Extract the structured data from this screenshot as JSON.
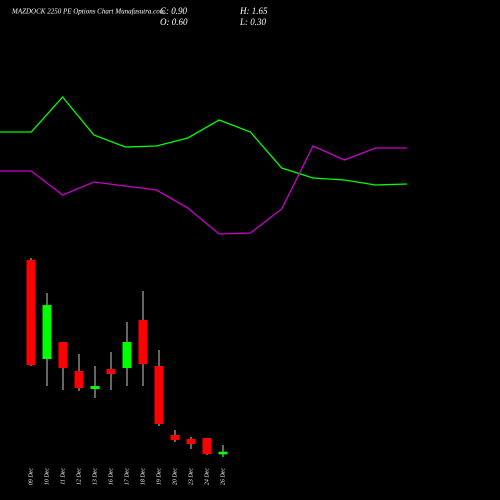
{
  "chart_data": [
    {
      "type": "line",
      "ylim": [
        0,
        250
      ],
      "series": [
        {
          "color": "#00ff00",
          "values": [
            118,
            118,
            153,
            115,
            103,
            104,
            112,
            130,
            118,
            82,
            72,
            70,
            65,
            66
          ]
        },
        {
          "color": "#cc00cc",
          "values": [
            79,
            79,
            55,
            68,
            64,
            60,
            42,
            16,
            17,
            41,
            104,
            90,
            102,
            102
          ]
        }
      ]
    },
    {
      "type": "candlestick",
      "title": "MAZDOCK 2250  PE Options  Chart Munafasutra.com",
      "ohlc_labels": [
        "C: 0.90",
        "O: 0.60",
        "H: 1.65",
        "L: 0.30"
      ],
      "categories": [
        "09 Dec",
        "10 Dec",
        "11 Dec",
        "12 Dec",
        "13 Dec",
        "16 Dec",
        "17 Dec",
        "18 Dec",
        "19 Dec",
        "20 Dec",
        "23 Dec",
        "24 Dec",
        "26 Dec"
      ],
      "open": [
        22.46,
        11.33,
        13.24,
        9.98,
        7.95,
        10.2,
        10.31,
        15.71,
        10.54,
        2.78,
        2.33,
        2.44,
        0.6
      ],
      "high": [
        22.69,
        18.75,
        13.24,
        11.89,
        10.54,
        12.11,
        15.49,
        18.98,
        12.34,
        3.34,
        2.55,
        2.44,
        1.65
      ],
      "low": [
        10.54,
        8.29,
        7.84,
        7.73,
        6.94,
        7.84,
        8.29,
        8.29,
        3.79,
        1.99,
        1.2,
        0.53,
        0.3
      ],
      "close": [
        10.65,
        17.4,
        10.31,
        8.06,
        8.29,
        9.64,
        13.24,
        10.76,
        4.01,
        2.21,
        1.76,
        0.64,
        0.9
      ],
      "up_color": "#00ff00",
      "down_color": "#ff0000",
      "ylim": [
        0,
        26
      ]
    }
  ]
}
